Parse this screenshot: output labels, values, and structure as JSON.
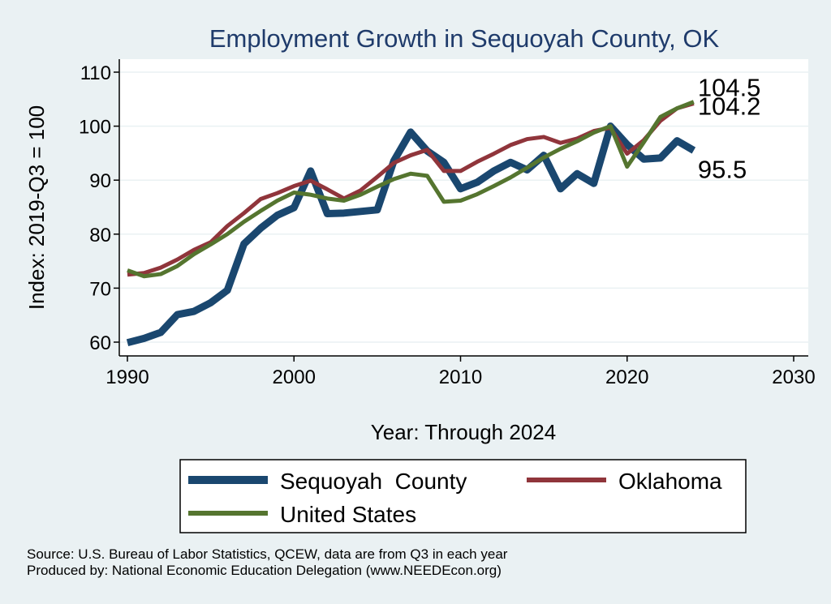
{
  "chart_data": {
    "type": "line",
    "title": "Employment Growth in Sequoyah County, OK",
    "xlabel": "Year: Through 2024",
    "ylabel": "Index: 2019-Q3 = 100",
    "xlim": [
      1990,
      2030
    ],
    "ylim": [
      58,
      112
    ],
    "xticks": [
      1990,
      2000,
      2010,
      2020,
      2030
    ],
    "yticks": [
      60,
      70,
      80,
      90,
      100,
      110
    ],
    "grid": true,
    "legend_position": "bottom",
    "x": [
      1990,
      1991,
      1992,
      1993,
      1994,
      1995,
      1996,
      1997,
      1998,
      1999,
      2000,
      2001,
      2002,
      2003,
      2004,
      2005,
      2006,
      2007,
      2008,
      2009,
      2010,
      2011,
      2012,
      2013,
      2014,
      2015,
      2016,
      2017,
      2018,
      2019,
      2020,
      2021,
      2022,
      2023,
      2024
    ],
    "series": [
      {
        "name": "Sequoyah  County",
        "color": "#1a476f",
        "width": 9,
        "values": [
          59.9,
          60.7,
          61.8,
          65.1,
          65.7,
          67.3,
          69.6,
          78.2,
          81.1,
          83.5,
          84.9,
          91.7,
          83.8,
          83.9,
          84.2,
          84.5,
          93.6,
          98.9,
          95.4,
          93.3,
          88.4,
          89.6,
          91.7,
          93.3,
          91.9,
          94.6,
          88.4,
          91.2,
          89.4,
          100.0,
          96.6,
          93.9,
          94.1,
          97.3,
          95.5
        ],
        "end_label": "95.5"
      },
      {
        "name": "Oklahoma",
        "color": "#90353b",
        "width": 5,
        "values": [
          72.5,
          72.8,
          73.8,
          75.3,
          77.1,
          78.5,
          81.5,
          83.9,
          86.5,
          87.6,
          88.9,
          89.9,
          88.3,
          86.6,
          88.1,
          90.6,
          93.2,
          94.6,
          95.6,
          91.7,
          91.7,
          93.4,
          94.9,
          96.5,
          97.6,
          98.0,
          96.9,
          97.7,
          99.1,
          99.7,
          94.9,
          97.4,
          101.0,
          103.3,
          104.2
        ],
        "end_label": "104.2"
      },
      {
        "name": "United States",
        "color": "#55752f",
        "width": 5,
        "values": [
          73.3,
          72.2,
          72.6,
          74.1,
          76.3,
          78.1,
          80.0,
          82.3,
          84.3,
          86.2,
          87.7,
          87.3,
          86.6,
          86.2,
          87.3,
          88.8,
          90.2,
          91.2,
          90.8,
          86.0,
          86.2,
          87.4,
          88.9,
          90.5,
          92.3,
          94.2,
          95.8,
          97.2,
          98.8,
          100.0,
          92.5,
          97.0,
          101.7,
          103.3,
          104.5
        ],
        "end_label": "104.5"
      }
    ]
  },
  "source_line": "Source: U.S. Bureau of Labor Statistics, QCEW, data are from Q3 in each year",
  "produced_line": "Produced by: National Economic Education Delegation (www.NEEDEcon.org)"
}
